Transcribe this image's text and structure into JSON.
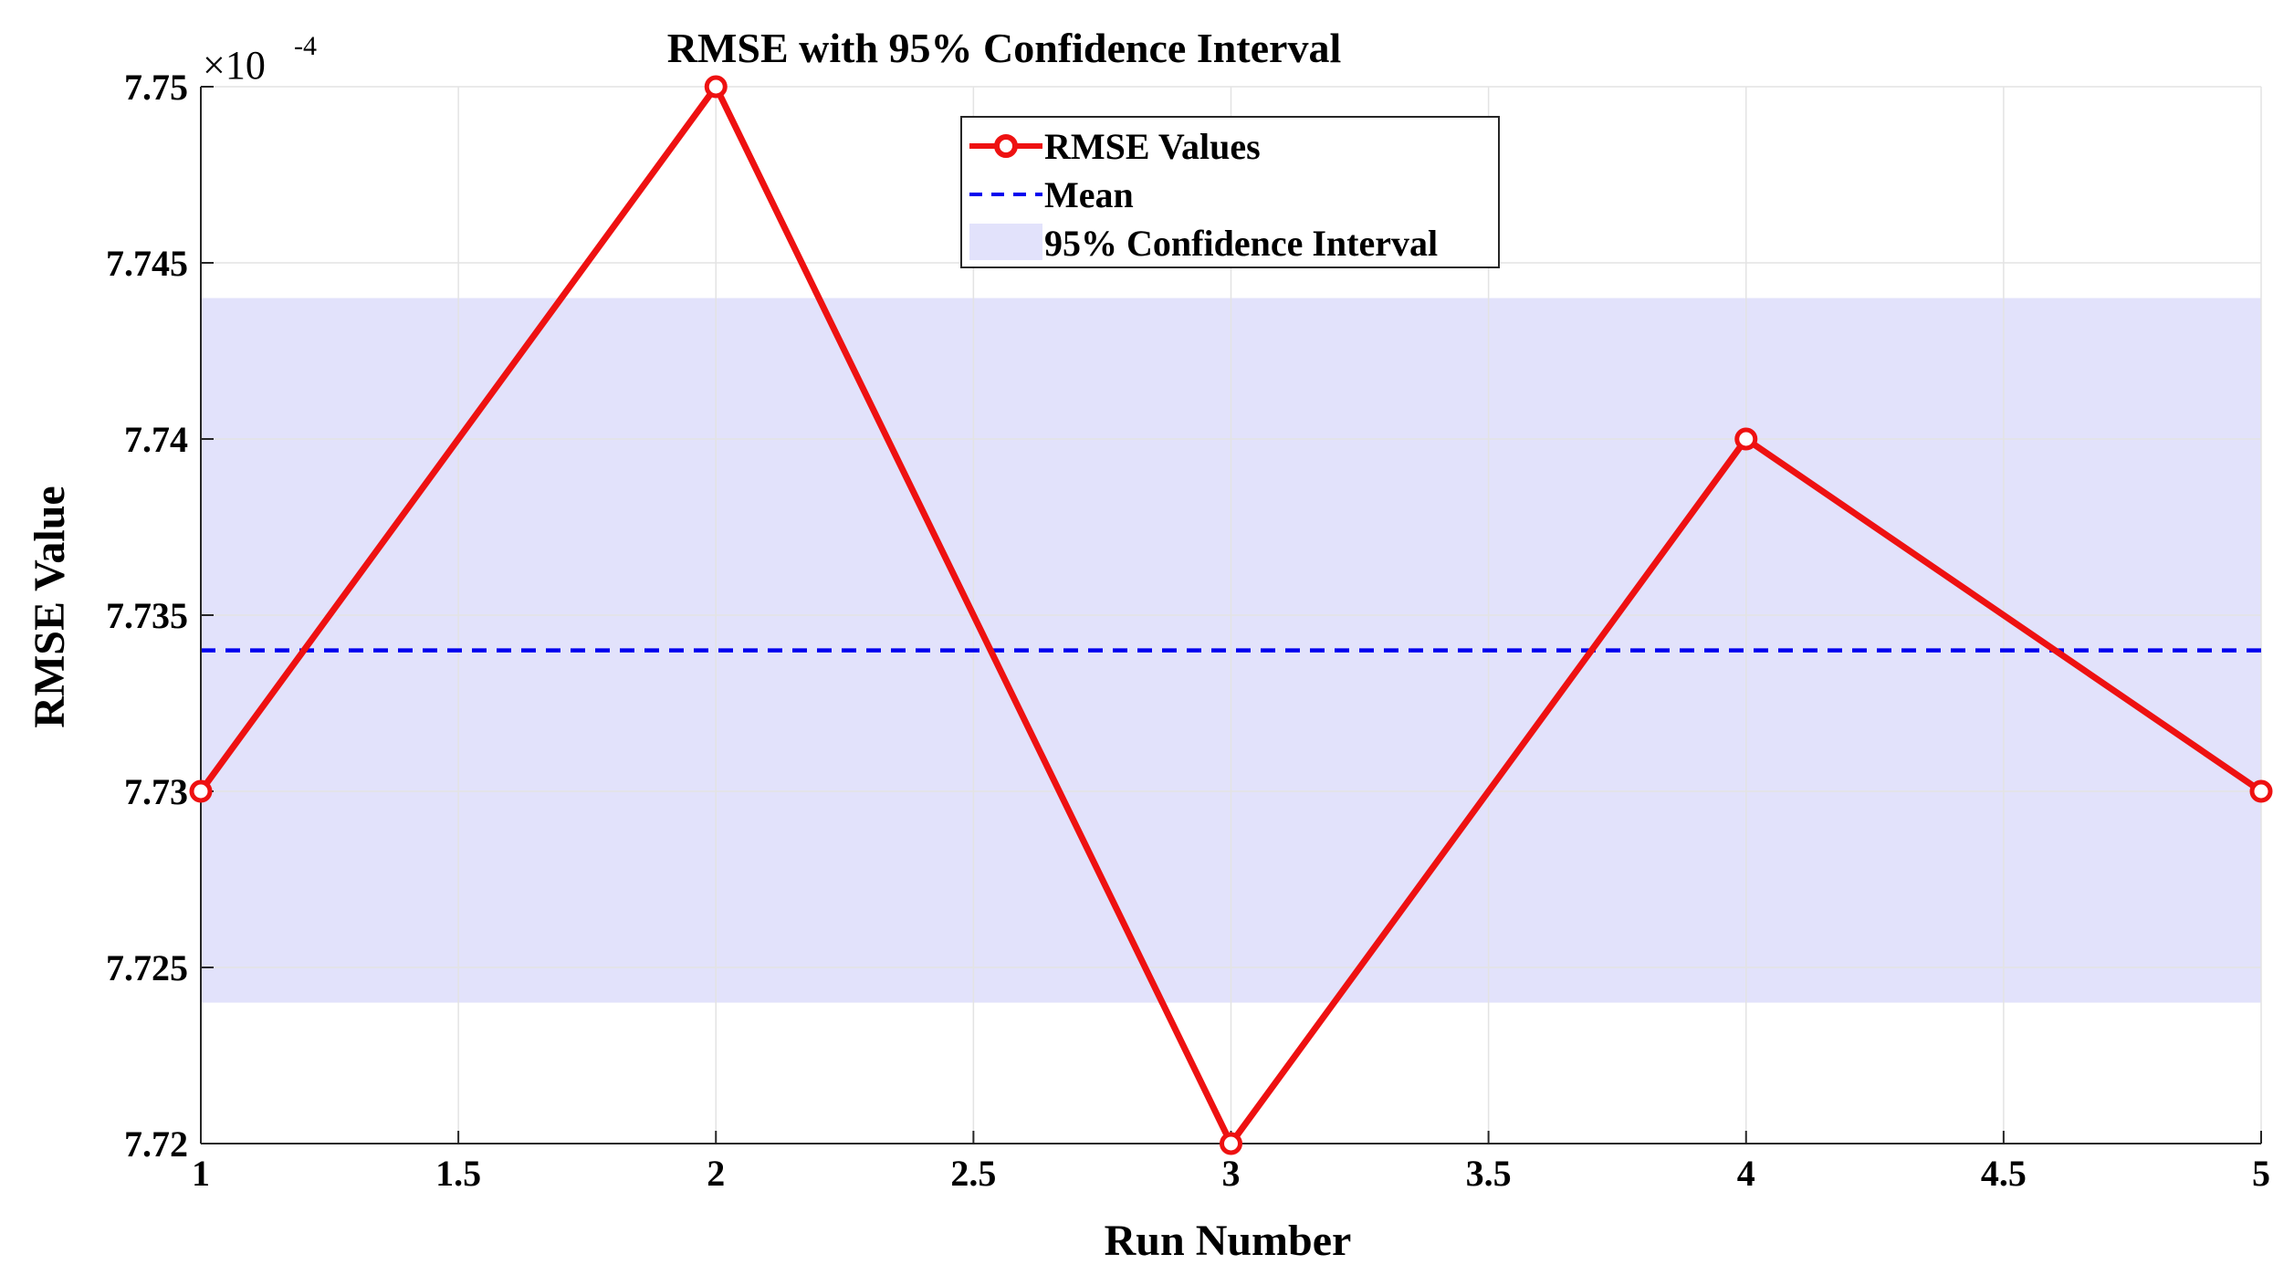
{
  "chart_data": {
    "type": "line",
    "title": "RMSE with 95% Confidence Interval",
    "xlabel": "Run Number",
    "ylabel": "RMSE Value",
    "y_exponent_label": "×10",
    "y_exponent_power": "-4",
    "xlim": [
      1,
      5
    ],
    "ylim": [
      7.72,
      7.75
    ],
    "x_ticks": [
      1,
      1.5,
      2,
      2.5,
      3,
      3.5,
      4,
      4.5,
      5
    ],
    "x_tick_labels": [
      "1",
      "1.5",
      "2",
      "2.5",
      "3",
      "3.5",
      "4",
      "4.5",
      "5"
    ],
    "y_ticks": [
      7.72,
      7.725,
      7.73,
      7.735,
      7.74,
      7.745,
      7.75
    ],
    "y_tick_labels": [
      "7.72",
      "7.725",
      "7.73",
      "7.735",
      "7.74",
      "7.745",
      "7.75"
    ],
    "grid": true,
    "series": [
      {
        "name": "RMSE Values",
        "kind": "line-marker",
        "color": "#ee1111",
        "x": [
          1,
          2,
          3,
          4,
          5
        ],
        "values": [
          7.73,
          7.75,
          7.72,
          7.74,
          7.73
        ]
      },
      {
        "name": "Mean",
        "kind": "dashed-line",
        "color": "#0000ee",
        "value": 7.734
      },
      {
        "name": "95% Confidence Interval",
        "kind": "band",
        "color": "#e2e2fb",
        "lower": 7.724,
        "upper": 7.744
      }
    ],
    "legend_position": "top-center"
  }
}
